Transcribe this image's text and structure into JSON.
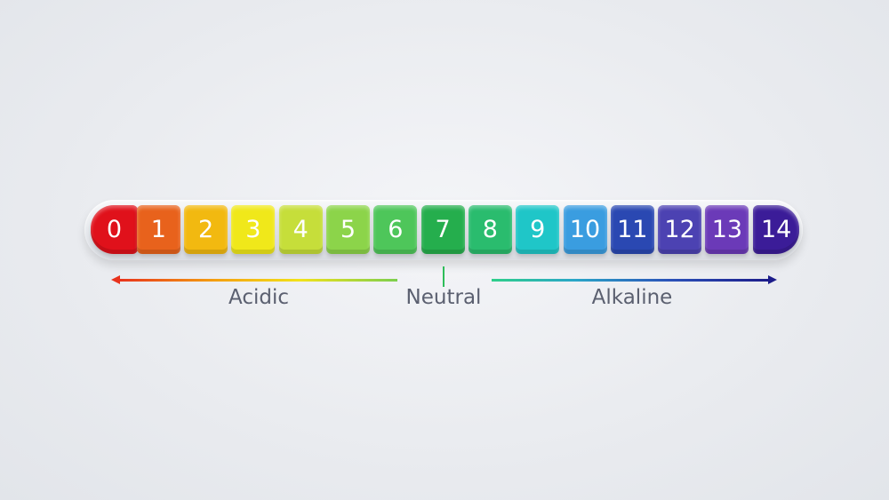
{
  "scale": [
    {
      "value": "0",
      "color": "#e0111b"
    },
    {
      "value": "1",
      "color": "#e8621c"
    },
    {
      "value": "2",
      "color": "#f2b910"
    },
    {
      "value": "3",
      "color": "#f0e81a"
    },
    {
      "value": "4",
      "color": "#c6de3a"
    },
    {
      "value": "5",
      "color": "#8cd44a"
    },
    {
      "value": "6",
      "color": "#4ec65a"
    },
    {
      "value": "7",
      "color": "#25ae4d"
    },
    {
      "value": "8",
      "color": "#2abc6e"
    },
    {
      "value": "9",
      "color": "#1fc6c8"
    },
    {
      "value": "10",
      "color": "#3a9de0"
    },
    {
      "value": "11",
      "color": "#2a48b2"
    },
    {
      "value": "12",
      "color": "#4c42b2"
    },
    {
      "value": "13",
      "color": "#6b3ab8"
    },
    {
      "value": "14",
      "color": "#3b1c98"
    }
  ],
  "labels": {
    "acidic": "Acidic",
    "neutral": "Neutral",
    "alkaline": "Alkaline"
  }
}
